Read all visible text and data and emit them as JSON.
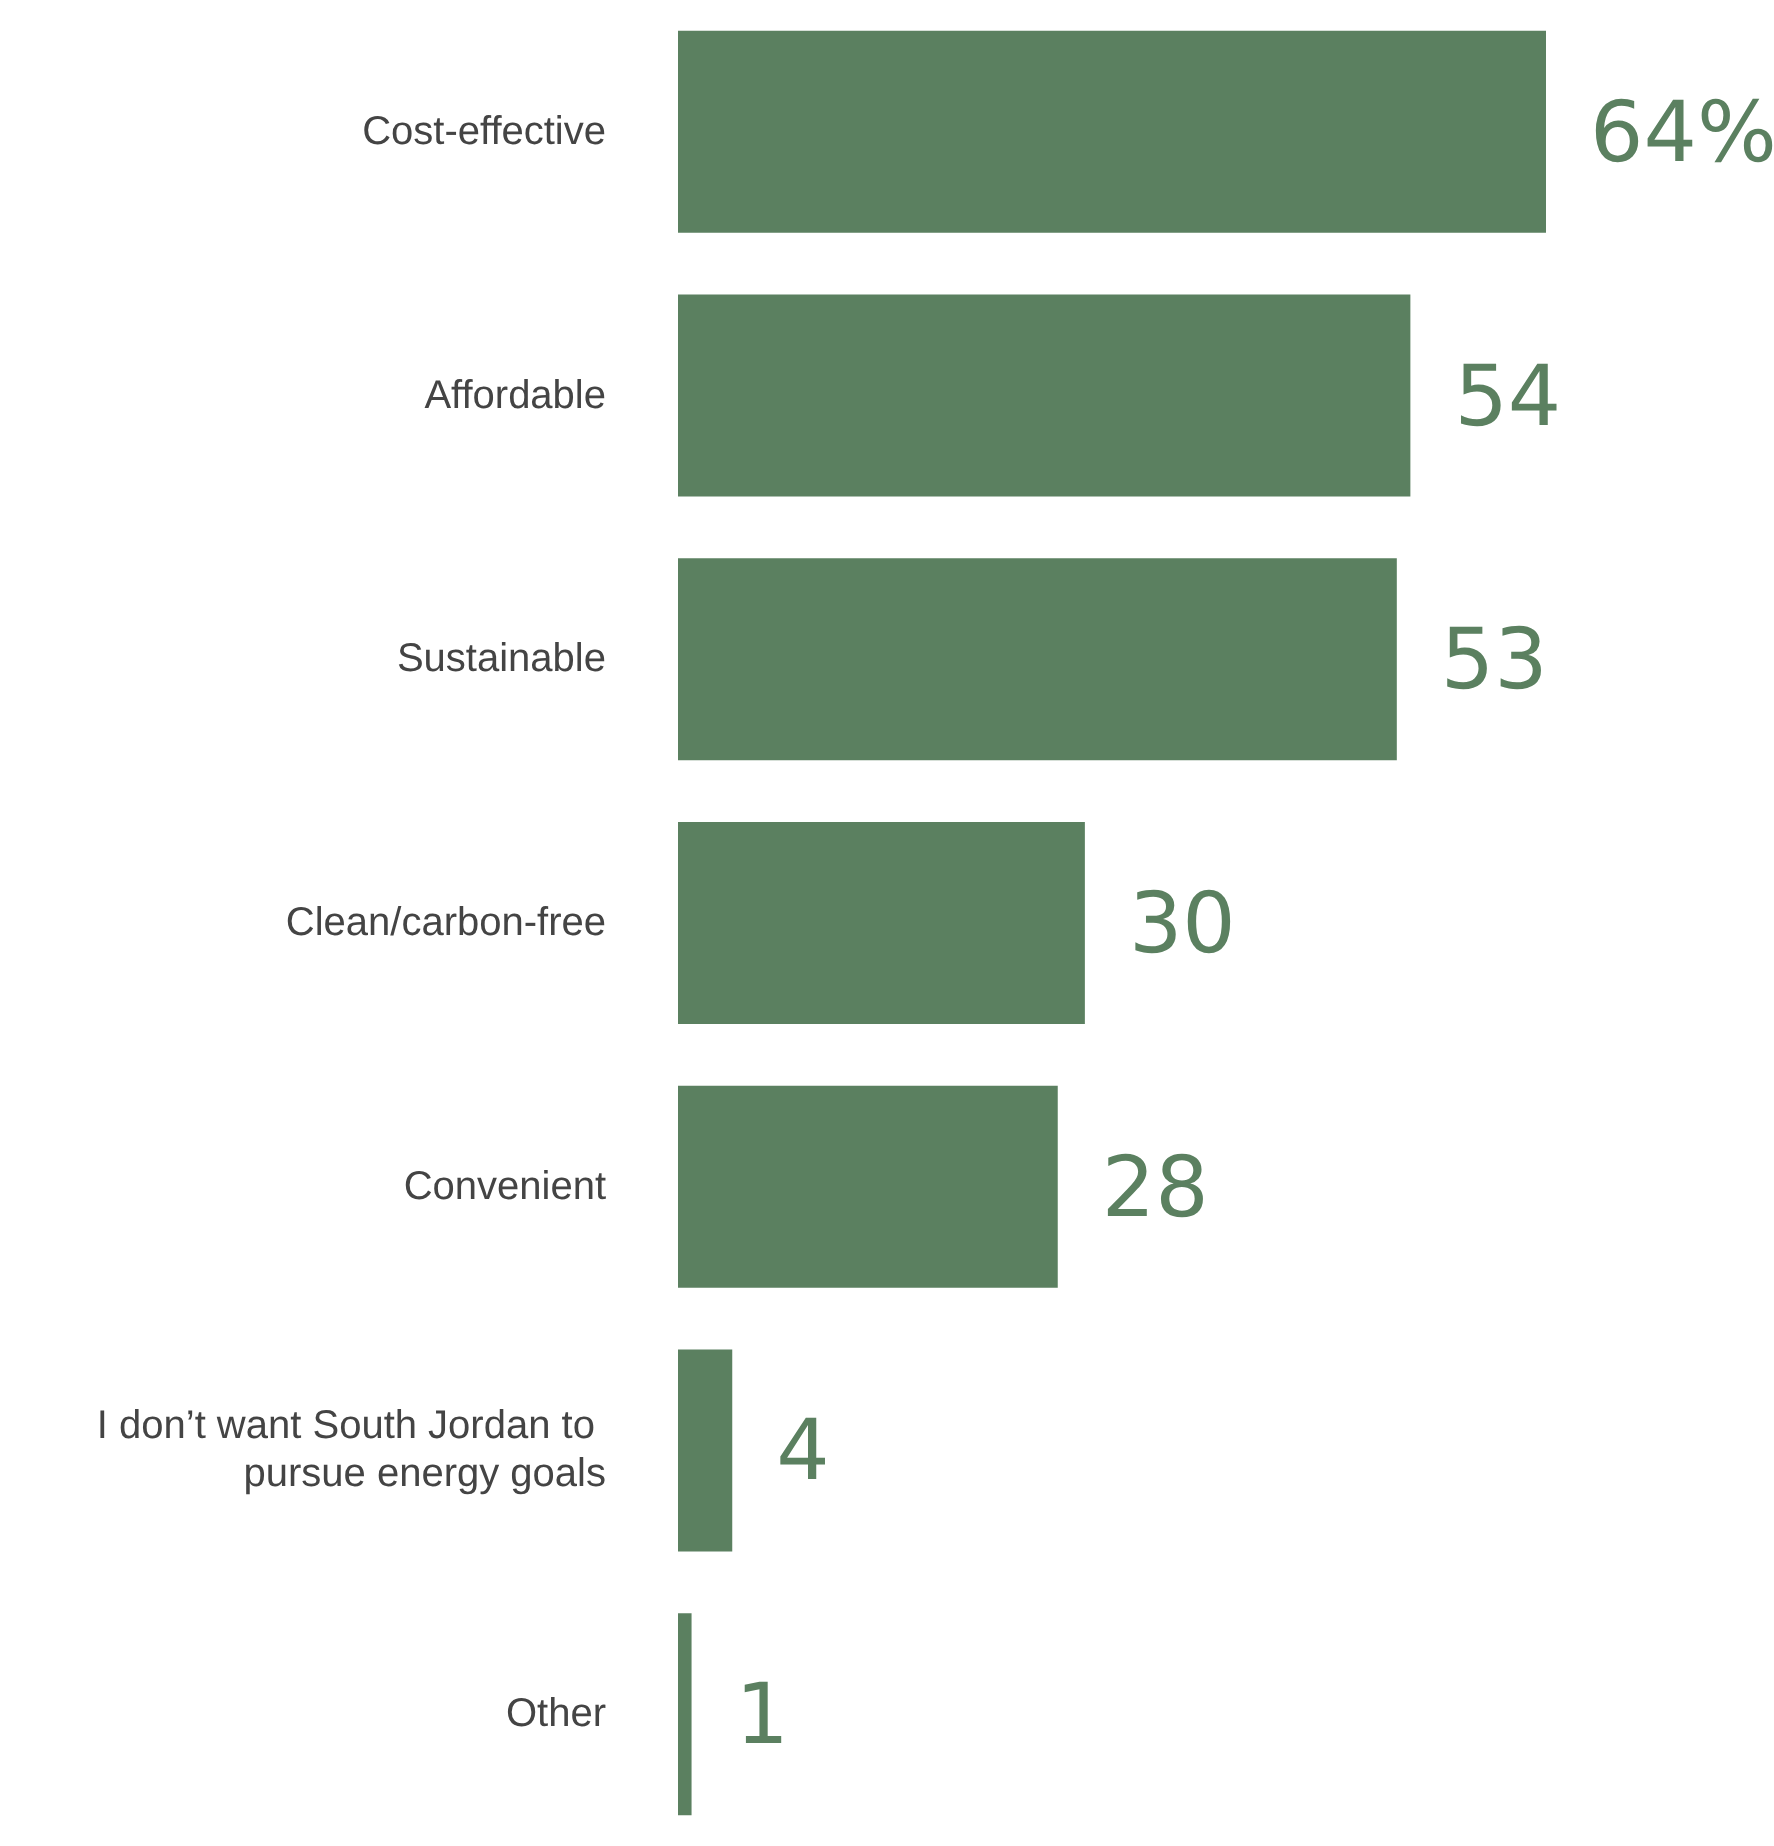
{
  "chart_data": {
    "type": "bar",
    "orientation": "horizontal",
    "categories": [
      "Cost-effective",
      "Affordable",
      "Sustainable",
      "Clean/carbon-free",
      "Convenient",
      "I don’t want South Jordan to pursue energy goals",
      "Other"
    ],
    "values": [
      64,
      54,
      53,
      30,
      28,
      4,
      1
    ],
    "value_labels": [
      "64%",
      "54",
      "53",
      "30",
      "28",
      "4",
      "1"
    ],
    "color": "#5b8060"
  }
}
